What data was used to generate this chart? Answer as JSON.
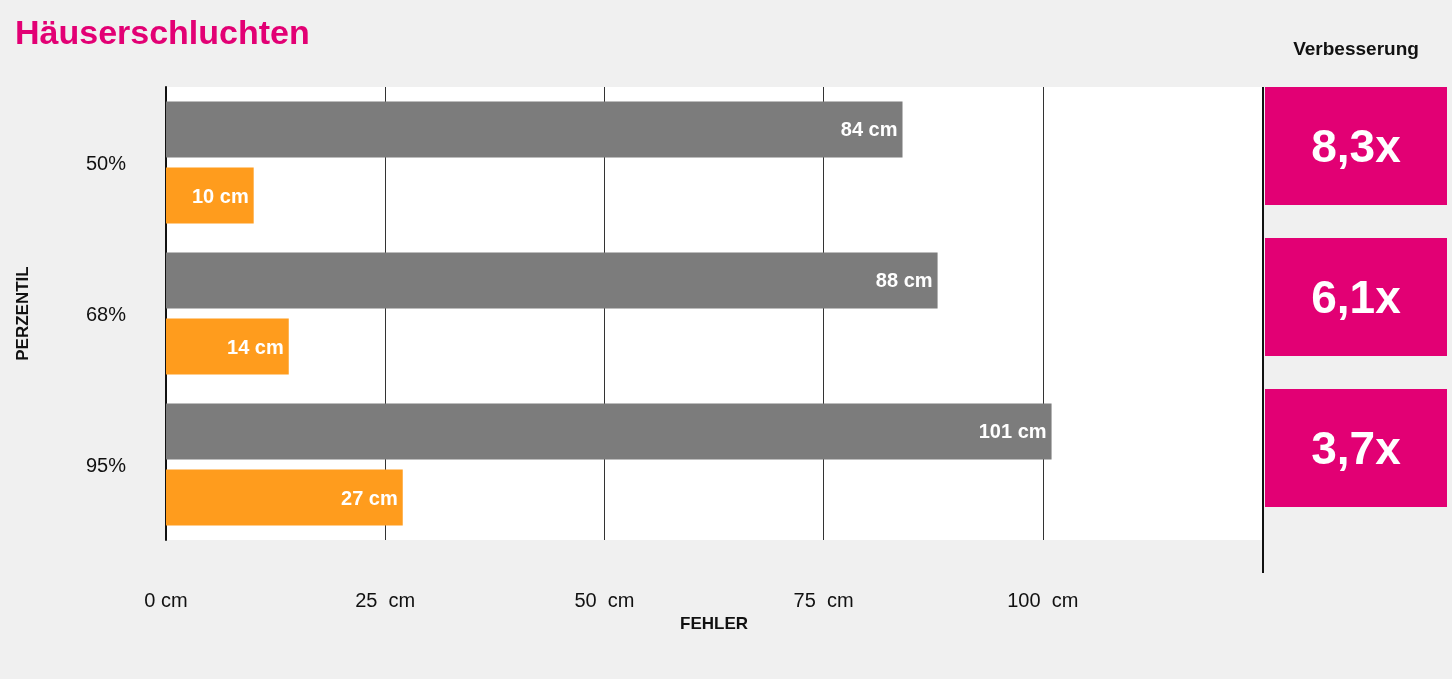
{
  "chart_data": {
    "type": "bar",
    "orientation": "horizontal",
    "title": "Häuserschluchten",
    "categories": [
      "50%",
      "68%",
      "95%"
    ],
    "series": [
      {
        "color": "#7c7c7c",
        "values": [
          84,
          88,
          101
        ],
        "value_labels": [
          "84 cm",
          "88 cm",
          "101 cm"
        ]
      },
      {
        "color": "#ff9c1d",
        "values": [
          10,
          14,
          27
        ],
        "value_labels": [
          "10 cm",
          "14 cm",
          "27 cm"
        ]
      }
    ],
    "xlim": [
      0,
      125
    ],
    "xticks": [
      {
        "value": 0,
        "label": "0 cm"
      },
      {
        "value": 25,
        "label": "25  cm"
      },
      {
        "value": 50,
        "label": "50  cm"
      },
      {
        "value": 75,
        "label": "75  cm"
      },
      {
        "value": 100,
        "label": "100  cm"
      }
    ],
    "xlabel": "FEHLER",
    "ylabel": "PERZENTIL",
    "grid": "x",
    "annotations": [
      "Verbesserung",
      "8,3x",
      "6,1x",
      "3,7x"
    ]
  }
}
